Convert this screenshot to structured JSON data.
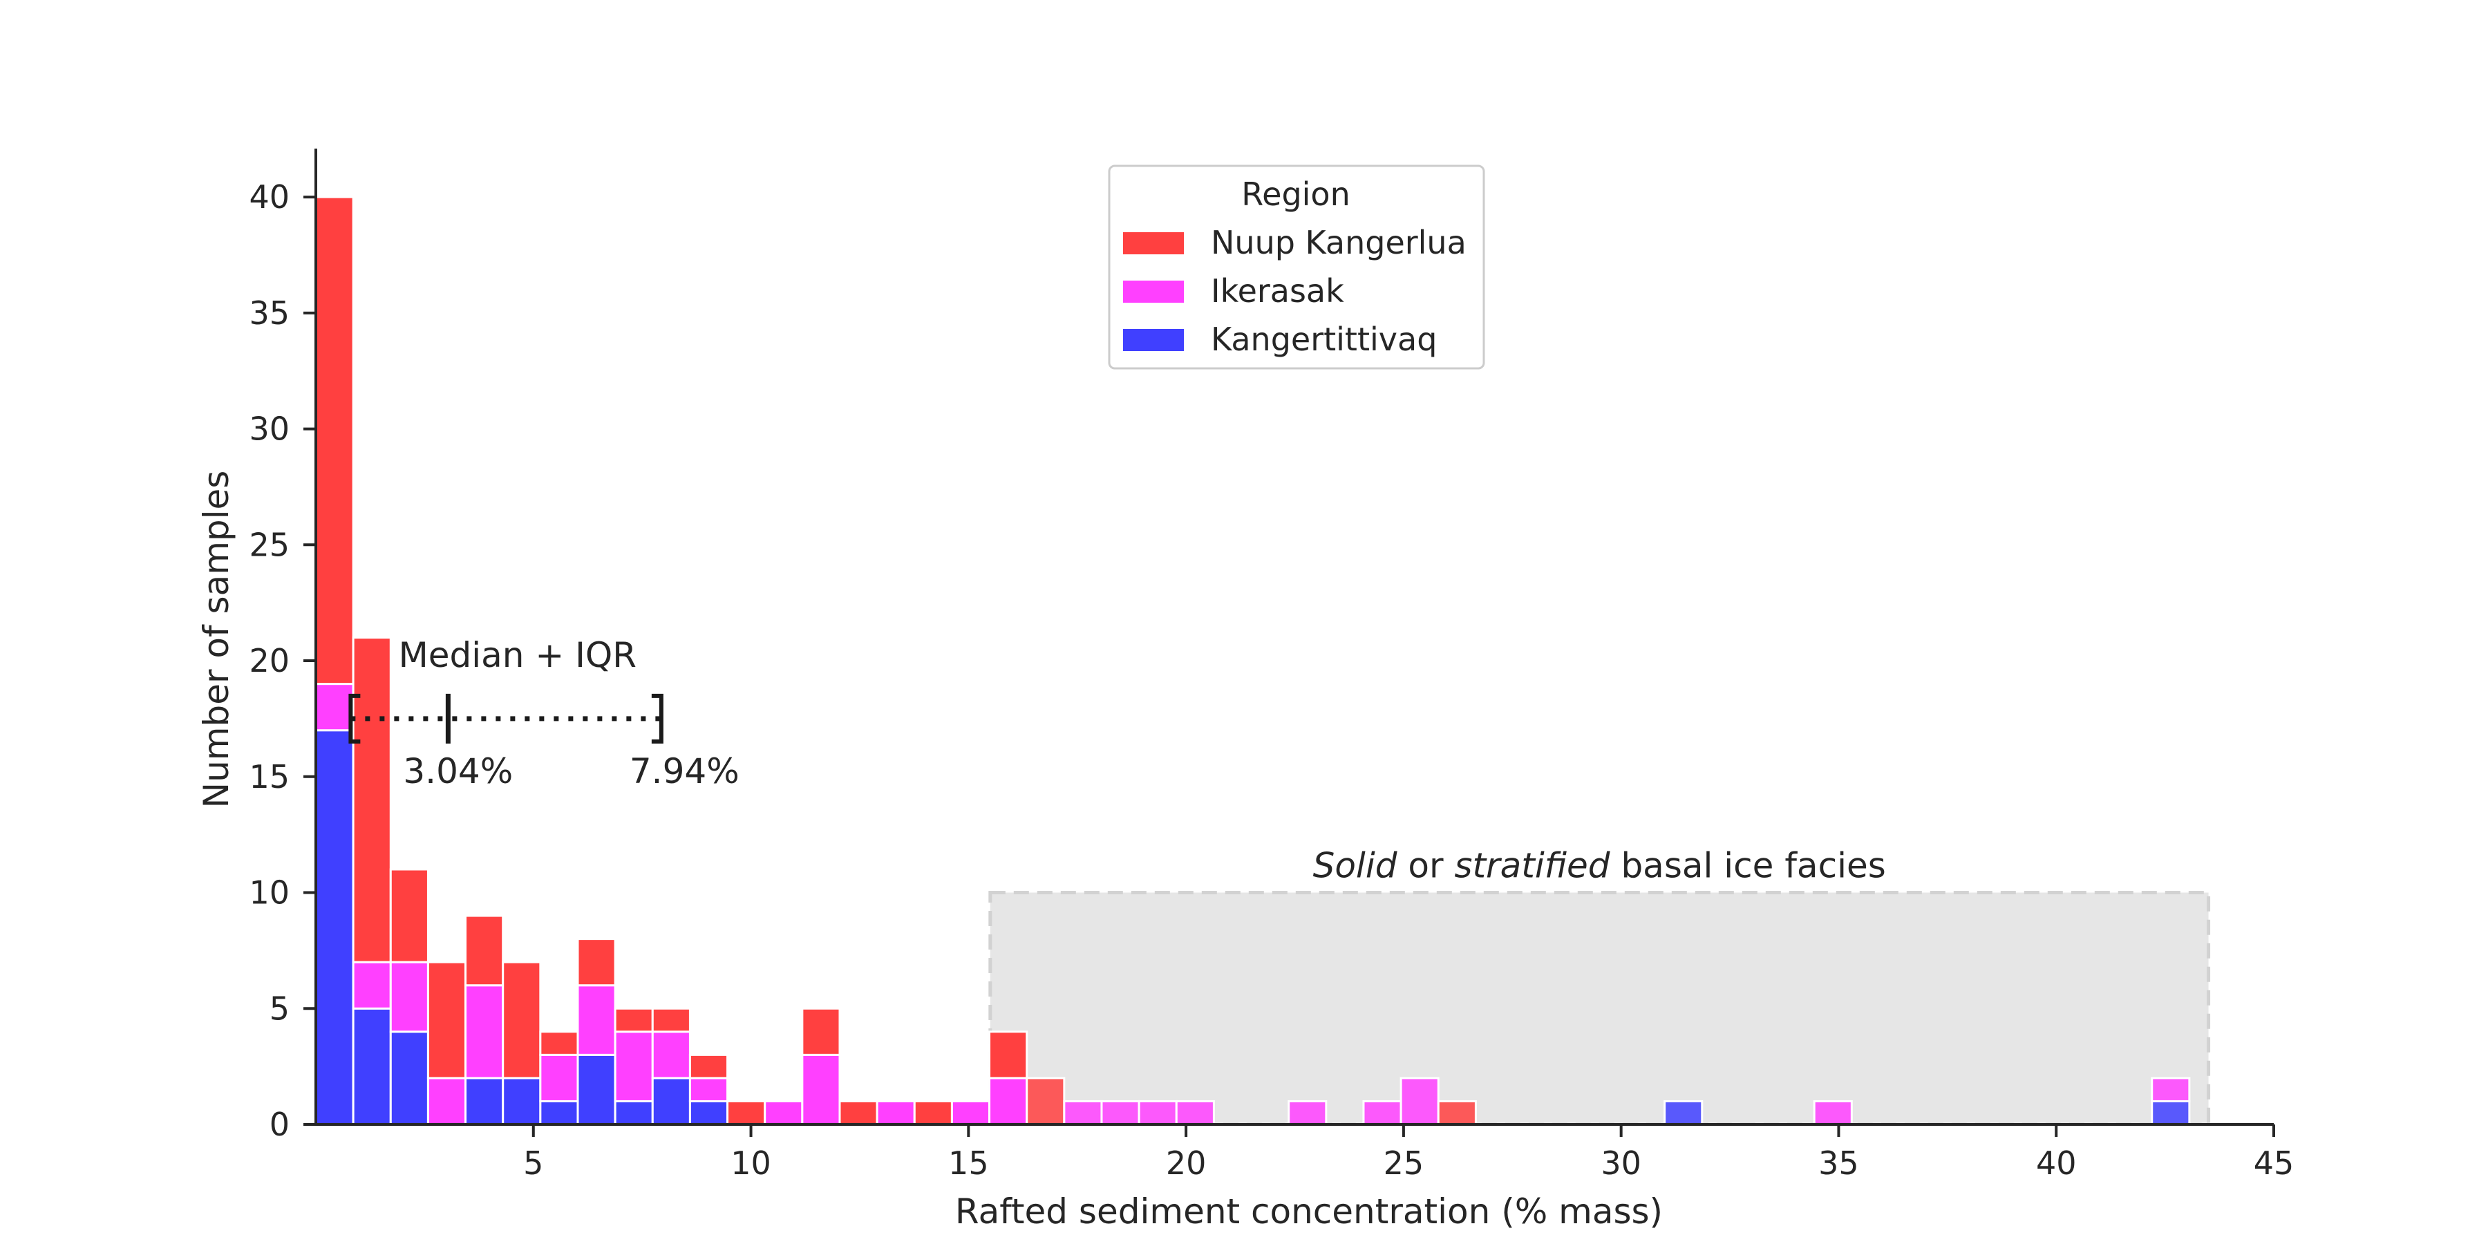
{
  "chart_data": {
    "type": "bar",
    "stacked": true,
    "xlabel": "Rafted sediment concentration (% mass)",
    "ylabel": "Number of samples",
    "xlim": [
      0,
      45
    ],
    "ylim": [
      0,
      42
    ],
    "xticks": [
      "5",
      "10",
      "15",
      "20",
      "25",
      "30",
      "35",
      "40",
      "45"
    ],
    "yticks": [
      "0",
      "5",
      "10",
      "15",
      "20",
      "25",
      "30",
      "35",
      "40"
    ],
    "grid": false,
    "bin_width": 0.86,
    "bin_starts": [
      0.0,
      0.86,
      1.72,
      2.58,
      3.44,
      4.3,
      5.16,
      6.02,
      6.88,
      7.74,
      8.6,
      9.46,
      10.32,
      11.18,
      12.04,
      12.9,
      13.76,
      14.62,
      15.48,
      16.34,
      17.2,
      18.06,
      18.92,
      19.78,
      22.36,
      24.08,
      24.94,
      25.8,
      31.0,
      34.44,
      42.2
    ],
    "legend_title": "Region",
    "legend_position": "upper center",
    "series": [
      {
        "name": "Kangertittivaq",
        "color": "#4040ff",
        "values": [
          17,
          5,
          4,
          0,
          2,
          2,
          1,
          3,
          1,
          2,
          1,
          0,
          0,
          0,
          0,
          0,
          0,
          0,
          0,
          0,
          0,
          0,
          0,
          0,
          0,
          0,
          0,
          0,
          1,
          0,
          1
        ]
      },
      {
        "name": "Ikerasak",
        "color": "#ff40ff",
        "values": [
          2,
          2,
          3,
          2,
          4,
          0,
          2,
          3,
          3,
          2,
          1,
          0,
          1,
          3,
          0,
          1,
          0,
          1,
          2,
          0,
          1,
          1,
          1,
          1,
          1,
          1,
          2,
          0,
          0,
          1,
          1
        ]
      },
      {
        "name": "Nuup Kangerlua",
        "color": "#ff4040",
        "values": [
          21,
          14,
          4,
          5,
          3,
          5,
          1,
          2,
          1,
          1,
          1,
          1,
          0,
          2,
          1,
          0,
          1,
          0,
          2,
          2,
          0,
          0,
          0,
          0,
          0,
          0,
          0,
          1,
          0,
          0,
          0
        ]
      }
    ],
    "annotations": {
      "iqr_label": "Median + IQR",
      "iqr_y": 17.5,
      "q1": 0.8,
      "median": 3.04,
      "q3": 7.94,
      "median_label": "3.04%",
      "q3_label": "7.94%",
      "facies_region": {
        "x0": 15.5,
        "x1": 43.5,
        "y0": 0,
        "y1": 10
      },
      "facies_label_parts": [
        {
          "text": "Solid",
          "italic": true
        },
        {
          "text": " or ",
          "italic": false
        },
        {
          "text": "stratified",
          "italic": true
        },
        {
          "text": " basal ice facies",
          "italic": false
        }
      ]
    }
  }
}
